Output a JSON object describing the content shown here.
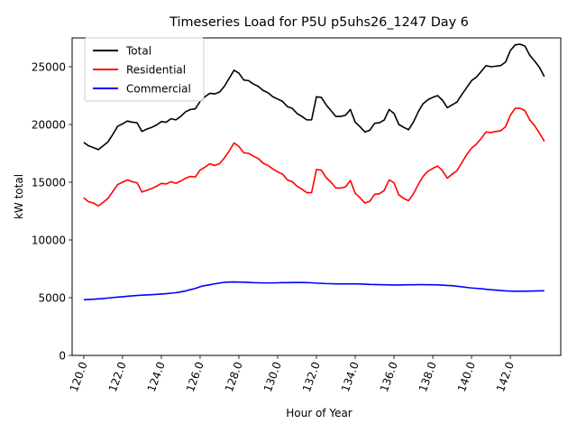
{
  "chart_data": {
    "type": "line",
    "title": "Timeseries Load for P5U p5uhs26_1247  Day 6",
    "xlabel": "Hour of Year",
    "ylabel": "kW total",
    "xlim": [
      119.4,
      144.6
    ],
    "ylim": [
      0,
      27500
    ],
    "xticks": [
      120,
      122,
      124,
      126,
      128,
      130,
      132,
      134,
      136,
      138,
      140,
      142
    ],
    "xtick_labels": [
      "120.0",
      "122.0",
      "124.0",
      "126.0",
      "128.0",
      "130.0",
      "132.0",
      "134.0",
      "136.0",
      "138.0",
      "140.0",
      "142.0"
    ],
    "yticks": [
      0,
      5000,
      10000,
      15000,
      20000,
      25000
    ],
    "ytick_labels": [
      "0",
      "5000",
      "10000",
      "15000",
      "20000",
      "25000"
    ],
    "legend_position": "upper-left",
    "x_start": 120,
    "x_step": 0.25,
    "series": [
      {
        "name": "Total",
        "color": "#000000",
        "values": [
          18450,
          18150,
          18000,
          17820,
          18150,
          18500,
          19150,
          19850,
          20050,
          20300,
          20200,
          20150,
          19400,
          19600,
          19750,
          19950,
          20250,
          20200,
          20500,
          20400,
          20700,
          21100,
          21300,
          21350,
          22000,
          22400,
          22700,
          22650,
          22800,
          23300,
          24000,
          24700,
          24450,
          23850,
          23800,
          23500,
          23300,
          22950,
          22750,
          22400,
          22200,
          22000,
          21550,
          21400,
          20950,
          20700,
          20400,
          20400,
          22400,
          22350,
          21700,
          21200,
          20700,
          20700,
          20800,
          21300,
          20200,
          19800,
          19350,
          19500,
          20100,
          20150,
          20400,
          21300,
          20950,
          20000,
          19750,
          19550,
          20200,
          21100,
          21800,
          22150,
          22350,
          22500,
          22100,
          21450,
          21700,
          21950,
          22600,
          23200,
          23800,
          24100,
          24600,
          25100,
          25000,
          25050,
          25100,
          25400,
          26400,
          26900,
          26950,
          26800,
          26000,
          25500,
          24950,
          24150
        ]
      },
      {
        "name": "Residential",
        "color": "#ff0000",
        "values": [
          13650,
          13300,
          13200,
          12950,
          13250,
          13600,
          14200,
          14800,
          15000,
          15200,
          15050,
          14950,
          14150,
          14300,
          14450,
          14650,
          14900,
          14850,
          15050,
          14900,
          15100,
          15350,
          15500,
          15450,
          16050,
          16300,
          16600,
          16450,
          16600,
          17100,
          17700,
          18400,
          18100,
          17550,
          17500,
          17250,
          17050,
          16650,
          16450,
          16150,
          15900,
          15700,
          15200,
          15050,
          14650,
          14400,
          14100,
          14100,
          16100,
          16050,
          15400,
          15000,
          14500,
          14500,
          14600,
          15150,
          14050,
          13650,
          13200,
          13350,
          13950,
          14000,
          14300,
          15200,
          14950,
          13900,
          13600,
          13400,
          14000,
          14800,
          15500,
          15950,
          16200,
          16400,
          16000,
          15350,
          15700,
          16000,
          16700,
          17400,
          17950,
          18300,
          18800,
          19350,
          19300,
          19400,
          19450,
          19800,
          20800,
          21400,
          21400,
          21200,
          20400,
          19900,
          19250,
          18550
        ]
      },
      {
        "name": "Commercial",
        "color": "#0000ff",
        "values": [
          4820,
          4850,
          4870,
          4900,
          4930,
          4970,
          5010,
          5050,
          5080,
          5120,
          5160,
          5190,
          5220,
          5240,
          5260,
          5290,
          5320,
          5350,
          5390,
          5430,
          5500,
          5580,
          5700,
          5800,
          5950,
          6050,
          6120,
          6200,
          6270,
          6330,
          6350,
          6360,
          6350,
          6340,
          6320,
          6300,
          6290,
          6280,
          6280,
          6280,
          6290,
          6300,
          6300,
          6310,
          6310,
          6310,
          6300,
          6290,
          6260,
          6240,
          6220,
          6210,
          6200,
          6200,
          6200,
          6200,
          6200,
          6190,
          6170,
          6150,
          6140,
          6130,
          6120,
          6110,
          6100,
          6100,
          6110,
          6120,
          6120,
          6130,
          6130,
          6120,
          6120,
          6110,
          6090,
          6060,
          6040,
          5990,
          5940,
          5890,
          5840,
          5810,
          5780,
          5730,
          5690,
          5660,
          5620,
          5590,
          5570,
          5560,
          5560,
          5560,
          5570,
          5580,
          5590,
          5600
        ]
      }
    ]
  }
}
